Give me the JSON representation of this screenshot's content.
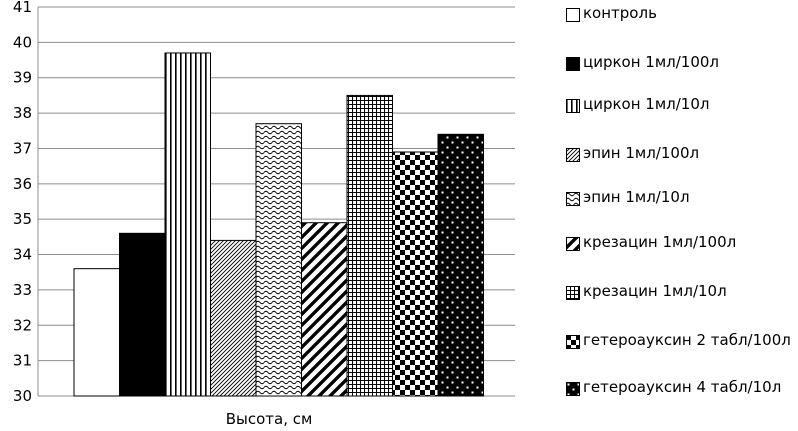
{
  "chart_data": {
    "type": "bar",
    "categories": [
      "Высота, см"
    ],
    "xlabel": "",
    "ylabel": "",
    "ylim": [
      30,
      41
    ],
    "yticks": [
      30,
      31,
      32,
      33,
      34,
      35,
      36,
      37,
      38,
      39,
      40,
      41
    ],
    "grid": true,
    "legend_position": "right",
    "series": [
      {
        "name": "контроль",
        "values": [
          33.6
        ],
        "pattern": "white"
      },
      {
        "name": "циркон 1мл/100л",
        "values": [
          34.6
        ],
        "pattern": "black"
      },
      {
        "name": "циркон 1мл/10л",
        "values": [
          39.7
        ],
        "pattern": "vertical-lines"
      },
      {
        "name": "эпин 1мл/100л",
        "values": [
          34.4
        ],
        "pattern": "thin-diagonal"
      },
      {
        "name": "эпин 1мл/10л",
        "values": [
          37.7
        ],
        "pattern": "waves"
      },
      {
        "name": "крезацин 1мл/100л",
        "values": [
          34.9
        ],
        "pattern": "wide-diagonal"
      },
      {
        "name": "крезацин 1мл/10л",
        "values": [
          38.5
        ],
        "pattern": "grid"
      },
      {
        "name": "гетероауксин 2 табл/100л",
        "values": [
          36.9
        ],
        "pattern": "checker"
      },
      {
        "name": "гетероауксин 4 табл/10л",
        "values": [
          37.4
        ],
        "pattern": "dots"
      }
    ]
  }
}
